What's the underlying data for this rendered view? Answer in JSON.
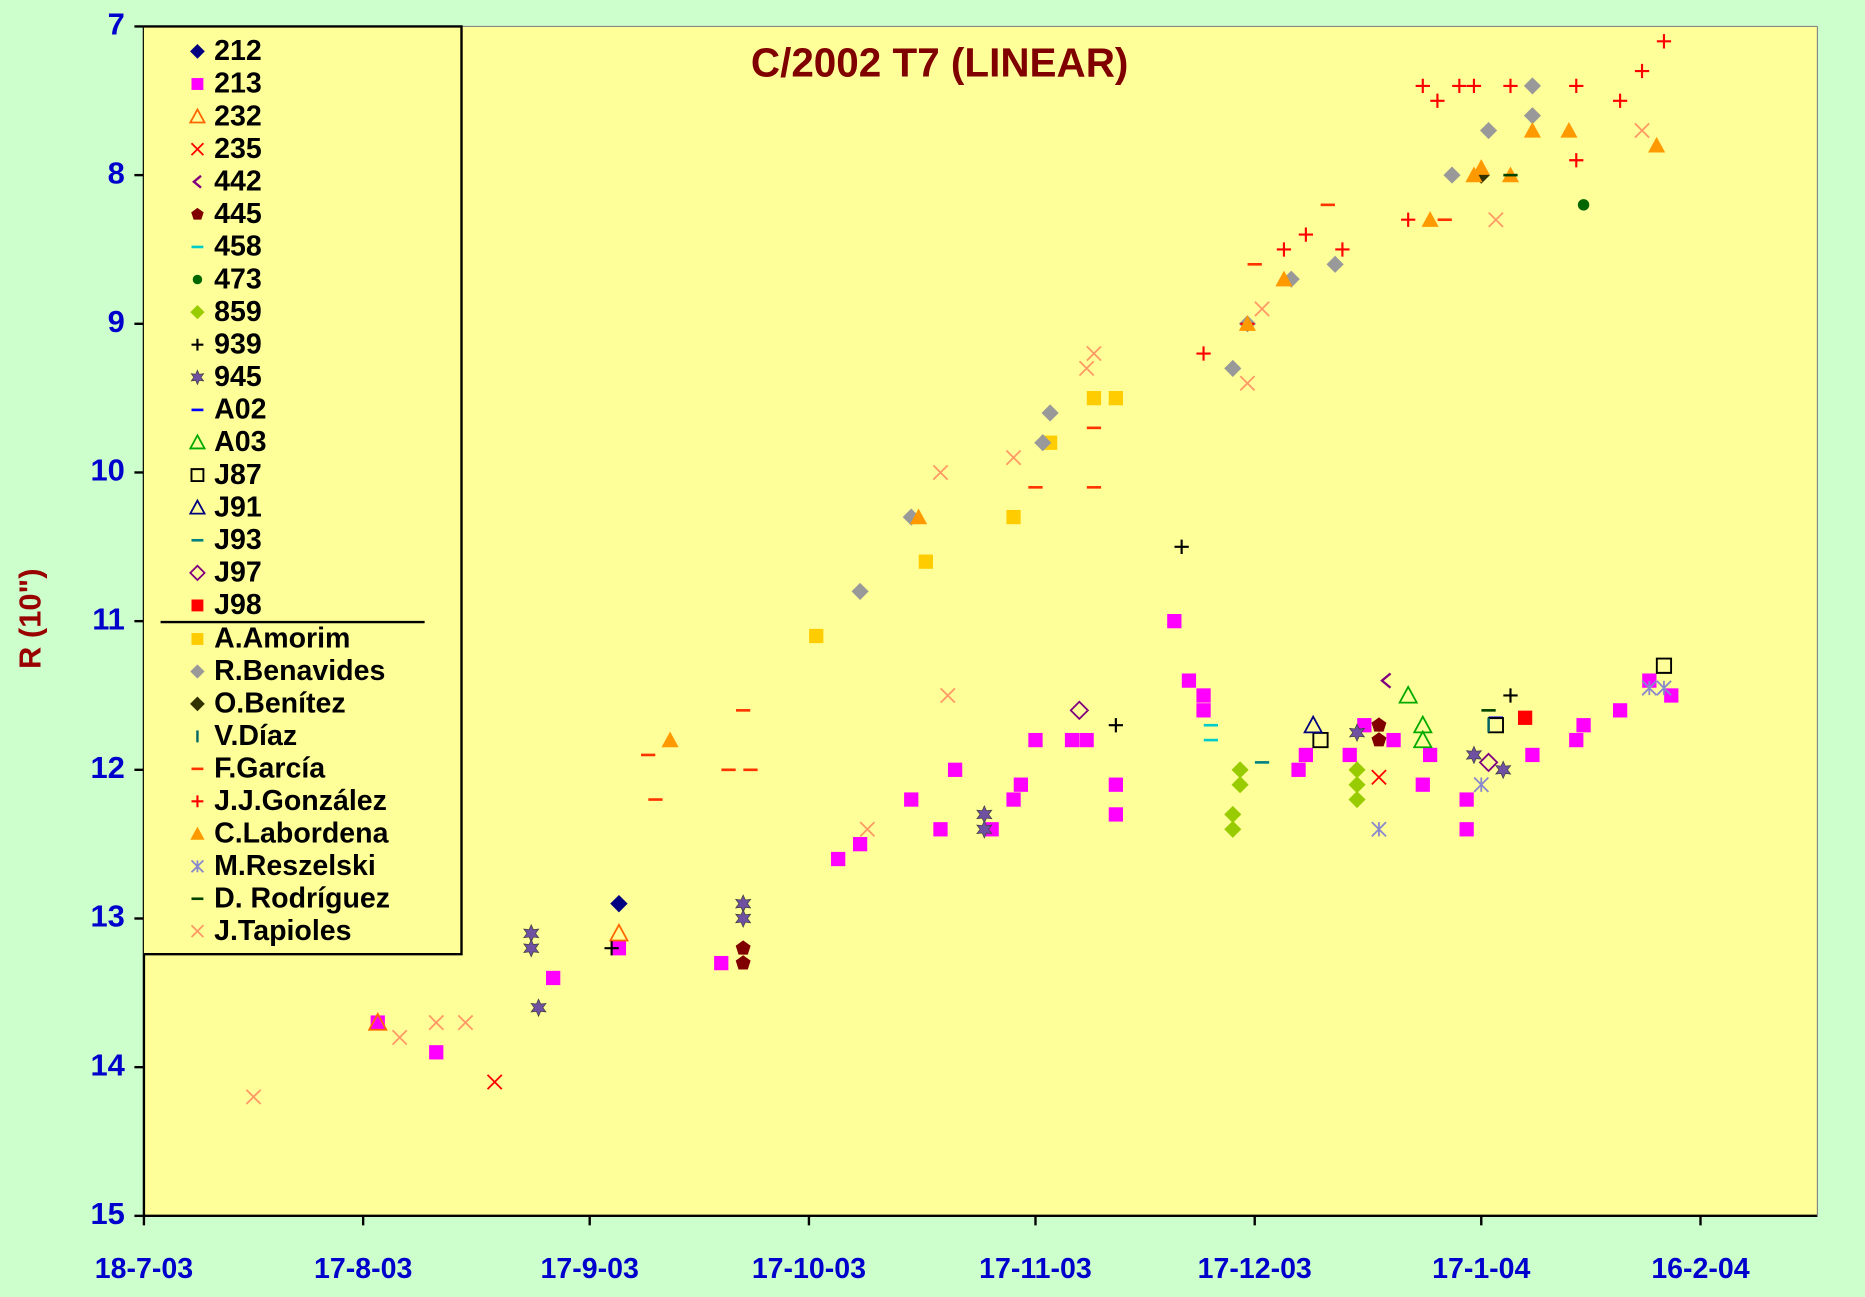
{
  "chart_data": {
    "type": "scatter",
    "title": "C/2002 T7 (LINEAR)",
    "ylabel": "R (10\")",
    "xlim": [
      "2003-07-18",
      "2004-03-03"
    ],
    "xticks": [
      {
        "value": "2003-07-18",
        "label": "18-7-03"
      },
      {
        "value": "2003-08-17",
        "label": "17-8-03"
      },
      {
        "value": "2003-09-17",
        "label": "17-9-03"
      },
      {
        "value": "2003-10-17",
        "label": "17-10-03"
      },
      {
        "value": "2003-11-17",
        "label": "17-11-03"
      },
      {
        "value": "2003-12-17",
        "label": "17-12-03"
      },
      {
        "value": "2004-01-17",
        "label": "17-1-04"
      },
      {
        "value": "2004-02-16",
        "label": "16-2-04"
      }
    ],
    "ylim": [
      15,
      7
    ],
    "yticks": [
      7,
      8,
      9,
      10,
      11,
      12,
      13,
      14,
      15
    ],
    "legend": "upper left",
    "series": [
      {
        "name": "212",
        "color": "#000080",
        "marker": "plus-bold",
        "x": [
          "2003-09-21"
        ],
        "y": [
          12.9
        ]
      },
      {
        "name": "213",
        "color": "#ff00ff",
        "marker": "square",
        "x": [
          "2003-08-19",
          "2003-08-27",
          "2003-09-12",
          "2003-09-21",
          "2003-10-05",
          "2003-10-21",
          "2003-10-24",
          "2003-10-31",
          "2003-11-04",
          "2003-11-06",
          "2003-11-11",
          "2003-11-14",
          "2003-11-15",
          "2003-11-17",
          "2003-11-22",
          "2003-11-24",
          "2003-11-28",
          "2003-11-28",
          "2003-12-06",
          "2003-12-08",
          "2003-12-10",
          "2003-12-10",
          "2003-12-23",
          "2003-12-24",
          "2003-12-30",
          "2004-01-01",
          "2004-01-05",
          "2004-01-09",
          "2004-01-10",
          "2004-01-15",
          "2004-01-15",
          "2004-01-24",
          "2004-01-30",
          "2004-01-31",
          "2004-02-05",
          "2004-02-09",
          "2004-02-12"
        ],
        "y": [
          13.7,
          13.9,
          13.4,
          13.2,
          13.3,
          12.6,
          12.5,
          12.2,
          12.4,
          12.0,
          12.4,
          12.2,
          12.1,
          11.8,
          11.8,
          11.8,
          12.1,
          12.3,
          11.0,
          11.4,
          11.5,
          11.6,
          12.0,
          11.9,
          11.9,
          11.7,
          11.8,
          12.1,
          11.9,
          12.2,
          12.4,
          11.9,
          11.8,
          11.7,
          11.6,
          11.4,
          11.5
        ]
      },
      {
        "name": "232",
        "color": "#ff6600",
        "marker": "triangle-open",
        "x": [
          "2003-08-19",
          "2003-09-21"
        ],
        "y": [
          13.7,
          13.1
        ]
      },
      {
        "name": "235",
        "color": "#ff0000",
        "marker": "x",
        "x": [
          "2003-09-04",
          "2004-01-03"
        ],
        "y": [
          14.1,
          12.05
        ]
      },
      {
        "name": "442",
        "color": "#800080",
        "marker": "lt",
        "x": [
          "2004-01-04"
        ],
        "y": [
          11.4
        ]
      },
      {
        "name": "445",
        "color": "#800000",
        "marker": "pentagon",
        "x": [
          "2003-10-08",
          "2003-10-08",
          "2004-01-03",
          "2004-01-03"
        ],
        "y": [
          13.2,
          13.3,
          11.7,
          11.8
        ]
      },
      {
        "name": "458",
        "color": "#00cccc",
        "marker": "dash",
        "x": [
          "2003-12-11",
          "2003-12-11"
        ],
        "y": [
          11.7,
          11.8
        ]
      },
      {
        "name": "473",
        "color": "#006600",
        "marker": "circle",
        "x": [
          "2004-01-31"
        ],
        "y": [
          8.2
        ]
      },
      {
        "name": "859",
        "color": "#99cc00",
        "marker": "diamond",
        "x": [
          "2003-12-14",
          "2003-12-14",
          "2003-12-15",
          "2003-12-15",
          "2003-12-31",
          "2003-12-31",
          "2003-12-31"
        ],
        "y": [
          12.3,
          12.4,
          12.0,
          12.1,
          12.0,
          12.1,
          12.2
        ]
      },
      {
        "name": "939",
        "color": "#000000",
        "marker": "plus",
        "x": [
          "2003-09-20",
          "2003-11-28",
          "2003-12-07",
          "2004-01-21"
        ],
        "y": [
          13.2,
          11.7,
          10.5,
          11.5
        ]
      },
      {
        "name": "945",
        "color": "#7050a0",
        "marker": "star",
        "x": [
          "2003-09-09",
          "2003-09-09",
          "2003-09-10",
          "2003-10-08",
          "2003-10-08",
          "2003-11-10",
          "2003-11-10",
          "2003-12-31",
          "2004-01-16",
          "2004-01-20"
        ],
        "y": [
          13.1,
          13.2,
          13.6,
          12.9,
          13.0,
          12.3,
          12.4,
          11.75,
          11.9,
          12.0
        ]
      },
      {
        "name": "A02",
        "color": "#0000ff",
        "marker": "dash",
        "x": [
          "2004-01-19"
        ],
        "y": [
          11.65
        ]
      },
      {
        "name": "A03",
        "color": "#00aa00",
        "marker": "triangle-open",
        "x": [
          "2004-01-07",
          "2004-01-09",
          "2004-01-09"
        ],
        "y": [
          11.5,
          11.7,
          11.8
        ]
      },
      {
        "name": "J87",
        "color": "#000000",
        "marker": "square-open",
        "x": [
          "2003-12-26",
          "2004-01-19",
          "2004-02-11"
        ],
        "y": [
          11.8,
          11.7,
          11.3
        ]
      },
      {
        "name": "J91",
        "color": "#000080",
        "marker": "triangle-open",
        "x": [
          "2003-12-25"
        ],
        "y": [
          11.7
        ]
      },
      {
        "name": "J93",
        "color": "#008080",
        "marker": "dash",
        "x": [
          "2003-12-18"
        ],
        "y": [
          11.95
        ]
      },
      {
        "name": "J97",
        "color": "#800080",
        "marker": "diamond-open",
        "x": [
          "2003-11-23",
          "2004-01-18"
        ],
        "y": [
          11.6,
          11.95
        ]
      },
      {
        "name": "J98",
        "color": "#ff0000",
        "marker": "square",
        "x": [
          "2004-01-23"
        ],
        "y": [
          11.65
        ]
      },
      {
        "name": "A.Amorim",
        "color": "#ffcc00",
        "marker": "square",
        "x": [
          "2003-10-18",
          "2003-11-02",
          "2003-11-14",
          "2003-11-19",
          "2003-11-25",
          "2003-11-28"
        ],
        "y": [
          11.1,
          10.6,
          10.3,
          9.8,
          9.5,
          9.5
        ]
      },
      {
        "name": "R.Benavides",
        "color": "#999999",
        "marker": "diamond",
        "x": [
          "2003-10-24",
          "2003-10-31",
          "2003-11-18",
          "2003-11-19",
          "2003-12-14",
          "2003-12-16",
          "2003-12-22",
          "2003-12-28",
          "2004-01-13",
          "2004-01-18",
          "2004-01-24",
          "2004-01-24"
        ],
        "y": [
          10.8,
          10.3,
          9.8,
          9.6,
          9.3,
          9.0,
          8.7,
          8.6,
          8.0,
          7.7,
          7.4,
          7.6
        ]
      },
      {
        "name": "O.Benítez",
        "color": "#333300",
        "marker": "plus-bold",
        "x": [
          "2004-01-17"
        ],
        "y": [
          8.0
        ]
      },
      {
        "name": "V.Díaz",
        "color": "#006666",
        "marker": "tick",
        "x": [
          "2004-01-18"
        ],
        "y": [
          11.7
        ]
      },
      {
        "name": "F.García",
        "color": "#ff3300",
        "marker": "dash",
        "x": [
          "2003-09-25",
          "2003-09-26",
          "2003-10-06",
          "2003-10-08",
          "2003-10-09",
          "2003-11-17",
          "2003-11-25",
          "2003-11-25",
          "2003-12-17",
          "2003-12-27",
          "2004-01-12"
        ],
        "y": [
          11.9,
          12.2,
          12.0,
          11.6,
          12.0,
          10.1,
          9.7,
          10.1,
          8.6,
          8.2,
          8.3
        ]
      },
      {
        "name": "J.J.González",
        "color": "#ff0000",
        "marker": "plus",
        "x": [
          "2003-12-10",
          "2003-12-16",
          "2003-12-21",
          "2003-12-24",
          "2003-12-29",
          "2004-01-07",
          "2004-01-09",
          "2004-01-11",
          "2004-01-14",
          "2004-01-16",
          "2004-01-21",
          "2004-01-30",
          "2004-01-30",
          "2004-02-05",
          "2004-02-08",
          "2004-02-11"
        ],
        "y": [
          9.2,
          9.0,
          8.5,
          8.4,
          8.5,
          8.3,
          7.4,
          7.5,
          7.4,
          7.4,
          7.4,
          7.4,
          7.9,
          7.5,
          7.3,
          7.1
        ]
      },
      {
        "name": "C.Labordena",
        "color": "#ff9900",
        "marker": "triangle",
        "x": [
          "2003-09-28",
          "2003-11-01",
          "2003-12-16",
          "2003-12-21",
          "2004-01-10",
          "2004-01-16",
          "2004-01-17",
          "2004-01-21",
          "2004-01-24",
          "2004-01-29",
          "2004-02-10"
        ],
        "y": [
          11.8,
          10.3,
          9.0,
          8.7,
          8.3,
          8.0,
          7.95,
          8.0,
          7.7,
          7.7,
          7.8
        ]
      },
      {
        "name": "M.Reszelski",
        "color": "#8888cc",
        "marker": "x-star",
        "x": [
          "2004-01-03",
          "2004-01-17",
          "2004-02-09",
          "2004-02-11"
        ],
        "y": [
          12.4,
          12.1,
          11.45,
          11.45
        ]
      },
      {
        "name": "D. Rodríguez",
        "color": "#004400",
        "marker": "dash",
        "x": [
          "2004-01-18",
          "2004-01-21"
        ],
        "y": [
          11.6,
          8.0
        ]
      },
      {
        "name": "J.Tapioles",
        "color": "#ff9966",
        "marker": "x",
        "x": [
          "2003-08-02",
          "2003-08-22",
          "2003-08-27",
          "2003-08-31",
          "2003-10-25",
          "2003-11-04",
          "2003-11-05",
          "2003-11-14",
          "2003-11-24",
          "2003-11-25",
          "2003-12-16",
          "2003-12-18",
          "2004-01-19",
          "2004-02-08"
        ],
        "y": [
          14.2,
          13.8,
          13.7,
          13.7,
          12.4,
          10.0,
          11.5,
          9.9,
          9.3,
          9.2,
          9.4,
          8.9,
          8.3,
          7.7
        ]
      }
    ]
  }
}
